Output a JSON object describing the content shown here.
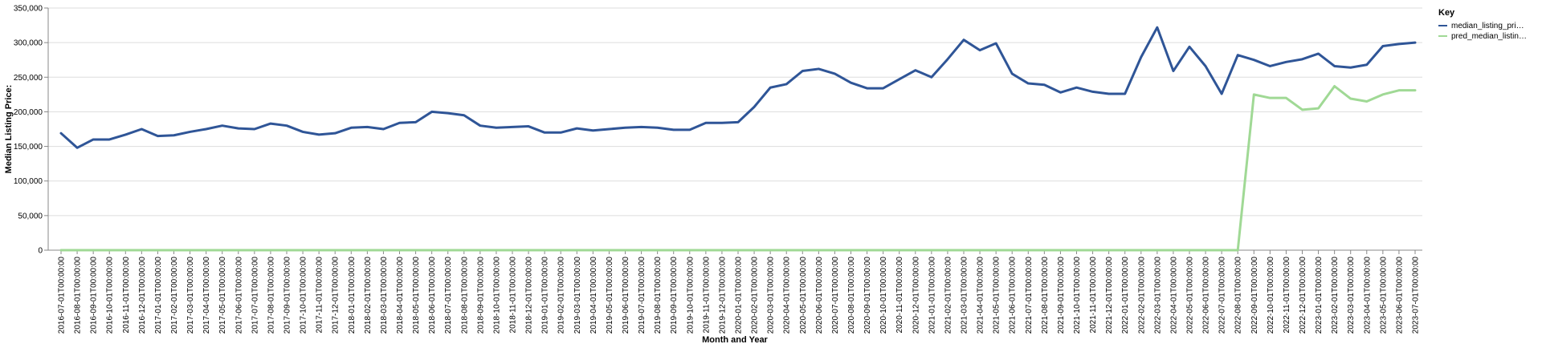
{
  "chart_data": {
    "type": "line",
    "title": "",
    "xlabel": "Month and Year",
    "ylabel": "Median Listing Price:",
    "ylim": [
      0,
      350000
    ],
    "yticks": [
      0,
      50000,
      100000,
      150000,
      200000,
      250000,
      300000,
      350000
    ],
    "ytick_labels": [
      "0",
      "50,000",
      "100,000",
      "150,000",
      "200,000",
      "250,000",
      "300,000",
      "350,000"
    ],
    "grid": true,
    "legend": {
      "title": "Key",
      "position": "top-right"
    },
    "categories": [
      "2016-07-01T00:00:00",
      "2016-08-01T00:00:00",
      "2016-09-01T00:00:00",
      "2016-10-01T00:00:00",
      "2016-11-01T00:00:00",
      "2016-12-01T00:00:00",
      "2017-01-01T00:00:00",
      "2017-02-01T00:00:00",
      "2017-03-01T00:00:00",
      "2017-04-01T00:00:00",
      "2017-05-01T00:00:00",
      "2017-06-01T00:00:00",
      "2017-07-01T00:00:00",
      "2017-08-01T00:00:00",
      "2017-09-01T00:00:00",
      "2017-10-01T00:00:00",
      "2017-11-01T00:00:00",
      "2017-12-01T00:00:00",
      "2018-01-01T00:00:00",
      "2018-02-01T00:00:00",
      "2018-03-01T00:00:00",
      "2018-04-01T00:00:00",
      "2018-05-01T00:00:00",
      "2018-06-01T00:00:00",
      "2018-07-01T00:00:00",
      "2018-08-01T00:00:00",
      "2018-09-01T00:00:00",
      "2018-10-01T00:00:00",
      "2018-11-01T00:00:00",
      "2018-12-01T00:00:00",
      "2019-01-01T00:00:00",
      "2019-02-01T00:00:00",
      "2019-03-01T00:00:00",
      "2019-04-01T00:00:00",
      "2019-05-01T00:00:00",
      "2019-06-01T00:00:00",
      "2019-07-01T00:00:00",
      "2019-08-01T00:00:00",
      "2019-09-01T00:00:00",
      "2019-10-01T00:00:00",
      "2019-11-01T00:00:00",
      "2019-12-01T00:00:00",
      "2020-01-01T00:00:00",
      "2020-02-01T00:00:00",
      "2020-03-01T00:00:00",
      "2020-04-01T00:00:00",
      "2020-05-01T00:00:00",
      "2020-06-01T00:00:00",
      "2020-07-01T00:00:00",
      "2020-08-01T00:00:00",
      "2020-09-01T00:00:00",
      "2020-10-01T00:00:00",
      "2020-11-01T00:00:00",
      "2020-12-01T00:00:00",
      "2021-01-01T00:00:00",
      "2021-02-01T00:00:00",
      "2021-03-01T00:00:00",
      "2021-04-01T00:00:00",
      "2021-05-01T00:00:00",
      "2021-06-01T00:00:00",
      "2021-07-01T00:00:00",
      "2021-08-01T00:00:00",
      "2021-09-01T00:00:00",
      "2021-10-01T00:00:00",
      "2021-11-01T00:00:00",
      "2021-12-01T00:00:00",
      "2022-01-01T00:00:00",
      "2022-02-01T00:00:00",
      "2022-03-01T00:00:00",
      "2022-04-01T00:00:00",
      "2022-05-01T00:00:00",
      "2022-06-01T00:00:00",
      "2022-07-01T00:00:00",
      "2022-08-01T00:00:00",
      "2022-09-01T00:00:00",
      "2022-10-01T00:00:00",
      "2022-11-01T00:00:00",
      "2022-12-01T00:00:00",
      "2023-01-01T00:00:00",
      "2023-02-01T00:00:00",
      "2023-03-01T00:00:00",
      "2023-04-01T00:00:00",
      "2023-05-01T00:00:00",
      "2023-06-01T00:00:00",
      "2023-07-01T00:00:00"
    ],
    "series": [
      {
        "name": "median_listing_price",
        "legend_label": "median_listing_pri…",
        "color": "#2f5597",
        "values": [
          169000,
          148000,
          160000,
          160000,
          167000,
          175000,
          165000,
          166000,
          171000,
          175000,
          180000,
          176000,
          175000,
          183000,
          180000,
          171000,
          167000,
          169000,
          177000,
          178000,
          175000,
          184000,
          185000,
          200000,
          198000,
          195000,
          180000,
          177000,
          178000,
          179000,
          170000,
          170000,
          176000,
          173000,
          175000,
          177000,
          178000,
          177000,
          174000,
          174000,
          184000,
          184000,
          185000,
          207000,
          235000,
          240000,
          259000,
          262000,
          255000,
          242000,
          234000,
          234000,
          247000,
          260000,
          250000,
          276000,
          304000,
          289000,
          299000,
          255000,
          241000,
          239000,
          228000,
          235000,
          229000,
          226000,
          226000,
          279000,
          322000,
          259000,
          294000,
          266000,
          226000,
          282000,
          275000,
          266000,
          272000,
          276000,
          284000,
          266000,
          264000,
          268000,
          295000,
          298000,
          300000
        ]
      },
      {
        "name": "pred_median_listing_price",
        "legend_label": "pred_median_listin…",
        "color": "#a0d995",
        "values": [
          0,
          0,
          0,
          0,
          0,
          0,
          0,
          0,
          0,
          0,
          0,
          0,
          0,
          0,
          0,
          0,
          0,
          0,
          0,
          0,
          0,
          0,
          0,
          0,
          0,
          0,
          0,
          0,
          0,
          0,
          0,
          0,
          0,
          0,
          0,
          0,
          0,
          0,
          0,
          0,
          0,
          0,
          0,
          0,
          0,
          0,
          0,
          0,
          0,
          0,
          0,
          0,
          0,
          0,
          0,
          0,
          0,
          0,
          0,
          0,
          0,
          0,
          0,
          0,
          0,
          0,
          0,
          0,
          0,
          0,
          0,
          0,
          0,
          0,
          225000,
          220000,
          220000,
          203000,
          205000,
          237000,
          219000,
          215000,
          225000,
          231000,
          231000
        ]
      }
    ]
  }
}
